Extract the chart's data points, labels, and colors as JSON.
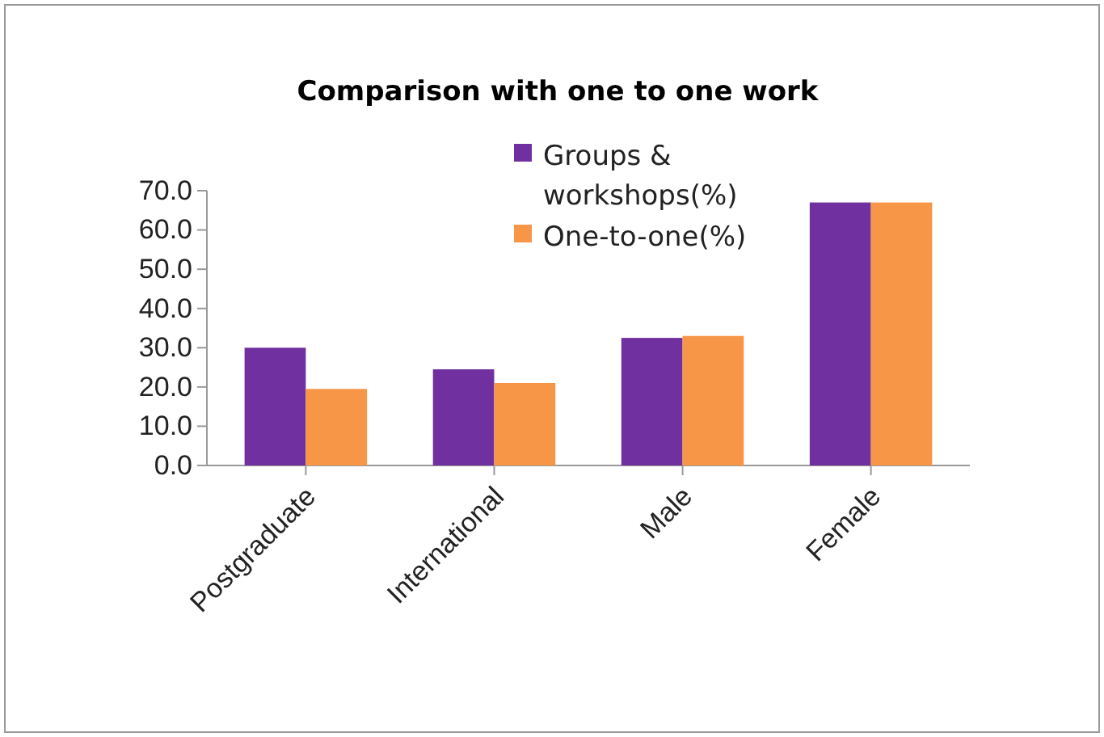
{
  "chart_data": {
    "type": "bar",
    "title": "Comparison with one to one work",
    "categories": [
      "Postgraduate",
      "International",
      "Male",
      "Female"
    ],
    "series": [
      {
        "name": "Groups & workshops(%)",
        "color": "#7030a0",
        "values": [
          30,
          24.5,
          32.5,
          67
        ]
      },
      {
        "name": "One-to-one(%)",
        "color": "#f79646",
        "values": [
          19.5,
          21,
          33,
          67
        ]
      }
    ],
    "ylim": [
      0,
      70
    ],
    "yticks": [
      {
        "value": 0,
        "label": "0.0"
      },
      {
        "value": 10,
        "label": "10.0"
      },
      {
        "value": 20,
        "label": "20.0"
      },
      {
        "value": 30,
        "label": "30.0"
      },
      {
        "value": 40,
        "label": "40.0"
      },
      {
        "value": 50,
        "label": "50.0"
      },
      {
        "value": 60,
        "label": "60.0"
      },
      {
        "value": 70,
        "label": "70.0"
      }
    ],
    "grid": false,
    "legend": "top"
  }
}
